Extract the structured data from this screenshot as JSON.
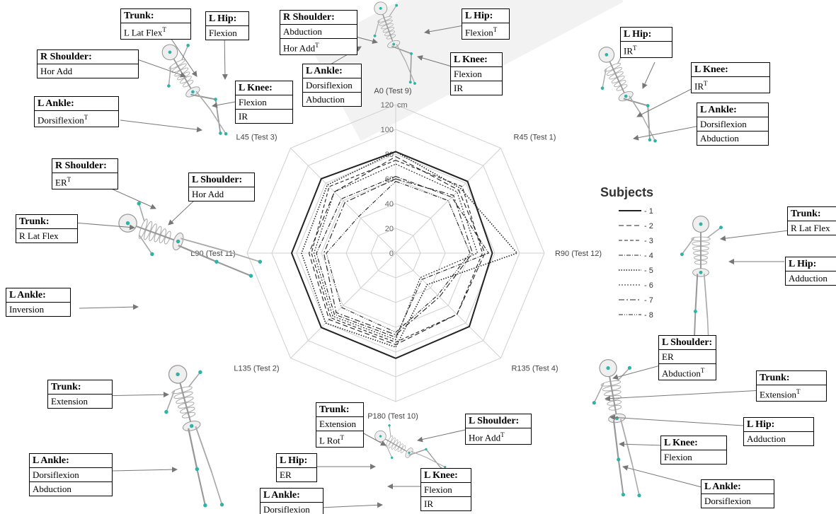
{
  "chart_data": {
    "type": "radar",
    "unit": "cm",
    "rlim": [
      0,
      120
    ],
    "rticks": [
      0,
      20,
      40,
      60,
      80,
      100,
      120
    ],
    "axes": [
      "A0 (Test 9)",
      "R45 (Test 1)",
      "R90 (Test 12)",
      "R135 (Test 4)",
      "P180 (Test 10)",
      "L135 (Test 2)",
      "L90 (Test 11)",
      "L45 (Test 3)"
    ],
    "legend_title": "Subjects",
    "legend_position": "right",
    "series": [
      {
        "name": "1",
        "values": [
          82,
          82,
          78,
          84,
          85,
          85,
          84,
          85
        ],
        "dash": "",
        "width": 2.0
      },
      {
        "name": "2",
        "values": [
          78,
          72,
          72,
          70,
          74,
          76,
          70,
          70
        ],
        "dash": "7,4",
        "width": 1.1
      },
      {
        "name": "3",
        "values": [
          75,
          76,
          70,
          70,
          72,
          74,
          68,
          76
        ],
        "dash": "5,3",
        "width": 1.1
      },
      {
        "name": "4",
        "values": [
          62,
          64,
          75,
          30,
          68,
          70,
          64,
          62
        ],
        "dash": "6,2,1,2",
        "width": 1.1
      },
      {
        "name": "5",
        "values": [
          82,
          74,
          98,
          36,
          76,
          80,
          76,
          78
        ],
        "dash": "1.5,2",
        "width": 1.6
      },
      {
        "name": "6",
        "values": [
          72,
          70,
          66,
          28,
          70,
          72,
          66,
          70
        ],
        "dash": "2,2",
        "width": 1.1
      },
      {
        "name": "7",
        "values": [
          60,
          66,
          62,
          50,
          66,
          68,
          58,
          58
        ],
        "dash": "8,3,2,3",
        "width": 1.1
      },
      {
        "name": "8",
        "values": [
          58,
          60,
          60,
          48,
          64,
          62,
          56,
          42
        ],
        "dash": "6,2,1,2,1,2",
        "width": 1.1
      }
    ]
  },
  "annotations": {
    "trunk_a": {
      "head": "Trunk:",
      "lines": [
        "L Lat Flex|T"
      ]
    },
    "lhip_a": {
      "head": "L Hip:",
      "lines": [
        "Flexion"
      ]
    },
    "rshoulder_a": {
      "head": "R Shoulder:",
      "lines": [
        "Hor Add"
      ]
    },
    "lknee_a": {
      "head": "L Knee:",
      "lines": [
        "Flexion",
        "IR"
      ]
    },
    "lankle_a": {
      "head": "L Ankle:",
      "lines": [
        "Dorsiflexion|T"
      ]
    },
    "rshoulder_b": {
      "head": "R Shoulder:",
      "lines": [
        "Abduction",
        "Hor Add|T"
      ]
    },
    "lhip_b": {
      "head": "L Hip:",
      "lines": [
        "Flexion|T"
      ]
    },
    "lankle_b": {
      "head": "L Ankle:",
      "lines": [
        "Dorsiflexion",
        "Abduction"
      ]
    },
    "lknee_b": {
      "head": "L Knee:",
      "lines": [
        "Flexion",
        "IR"
      ]
    },
    "lhip_c": {
      "head": "L Hip:",
      "lines": [
        "IR|T"
      ]
    },
    "lknee_c": {
      "head": "L Knee:",
      "lines": [
        "IR|T"
      ]
    },
    "lankle_c": {
      "head": "L Ankle:",
      "lines": [
        "Dorsiflexion",
        "Abduction"
      ]
    },
    "rshoulder_d": {
      "head": "R Shoulder:",
      "lines": [
        "ER|T"
      ]
    },
    "lshoulder_d": {
      "head": "L Shoulder:",
      "lines": [
        "Hor Add"
      ]
    },
    "trunk_d": {
      "head": "Trunk:",
      "lines": [
        "R Lat Flex"
      ]
    },
    "lankle_d": {
      "head": "L Ankle:",
      "lines": [
        "Inversion"
      ]
    },
    "trunk_e": {
      "head": "Trunk:",
      "lines": [
        "R Lat Flex"
      ]
    },
    "lhip_e": {
      "head": "L Hip:",
      "lines": [
        "Adduction"
      ]
    },
    "lshoulder_f": {
      "head": "L Shoulder:",
      "lines": [
        "ER",
        "Abduction|T"
      ]
    },
    "trunk_f": {
      "head": "Trunk:",
      "lines": [
        "Extension|T"
      ]
    },
    "lhip_f": {
      "head": "L Hip:",
      "lines": [
        "Adduction"
      ]
    },
    "lknee_f": {
      "head": "L Knee:",
      "lines": [
        "Flexion"
      ]
    },
    "lankle_f": {
      "head": "L Ankle:",
      "lines": [
        "Dorsiflexion"
      ]
    },
    "trunk_g": {
      "head": "Trunk:",
      "lines": [
        "Extension"
      ]
    },
    "lankle_g": {
      "head": "L Ankle:",
      "lines": [
        "Dorsiflexion",
        "Abduction"
      ]
    },
    "trunk_h": {
      "head": "Trunk:",
      "lines": [
        "Extension",
        "L Rot|T"
      ]
    },
    "lshoulder_h": {
      "head": "L Shoulder:",
      "lines": [
        "Hor Add|T"
      ]
    },
    "lhip_h": {
      "head": "L Hip:",
      "lines": [
        "ER"
      ]
    },
    "lknee_h": {
      "head": "L Knee:",
      "lines": [
        "Flexion",
        "IR"
      ]
    },
    "lankle_h": {
      "head": "L Ankle:",
      "lines": [
        "Dorsiflexion"
      ]
    }
  }
}
